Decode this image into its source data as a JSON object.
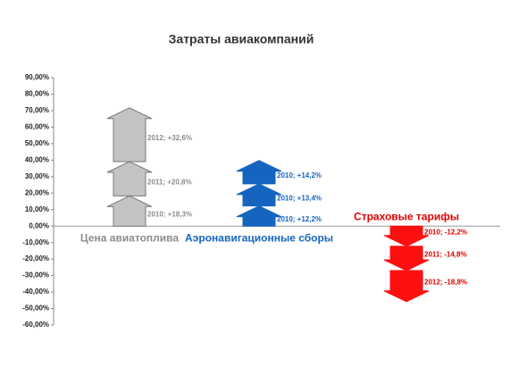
{
  "chart_data": {
    "type": "stacked-arrow",
    "title": "Затраты авиакомпаний",
    "ylim": [
      -60,
      90
    ],
    "yticks": [
      {
        "value": -60,
        "label": "-60,00%"
      },
      {
        "value": -50,
        "label": "-50,00%"
      },
      {
        "value": -40,
        "label": "-40,00%"
      },
      {
        "value": -30,
        "label": "-30,00%"
      },
      {
        "value": -20,
        "label": "-20,00%"
      },
      {
        "value": -10,
        "label": "-10,00%"
      },
      {
        "value": 0,
        "label": "0,00%"
      },
      {
        "value": 10,
        "label": "10,00%"
      },
      {
        "value": 20,
        "label": "20,00%"
      },
      {
        "value": 30,
        "label": "30,00%"
      },
      {
        "value": 40,
        "label": "40,00%"
      },
      {
        "value": 50,
        "label": "50,00%"
      },
      {
        "value": 60,
        "label": "60,00%"
      },
      {
        "value": 70,
        "label": "70,00%"
      },
      {
        "value": 80,
        "label": "80,00%"
      },
      {
        "value": 90,
        "label": "90,00%"
      }
    ],
    "series": [
      {
        "name": "Цена авиатоплива",
        "color": "#c4c4c4",
        "label_color": "#8c8c8c",
        "values": [
          18.3,
          20.8,
          32.6
        ],
        "value_labels": [
          "2010; +18,3%",
          "2011; +20,8%",
          "2012; +32,6%"
        ]
      },
      {
        "name": "Аэронавигационные сборы",
        "color": "#1565c0",
        "label_color": "#1565c0",
        "values": [
          12.2,
          13.4,
          14.2
        ],
        "value_labels": [
          "2010; +12,2%",
          "2010; +13,4%",
          "2010; +14,2%"
        ]
      },
      {
        "name": "Страховые тарифы",
        "color": "#ff1010",
        "label_color": "#e00000",
        "values": [
          -12.2,
          -14.8,
          -18.8
        ],
        "value_labels": [
          "2010; -12,2%",
          "2011; -14,8%",
          "2012; -18,8%"
        ]
      }
    ]
  }
}
